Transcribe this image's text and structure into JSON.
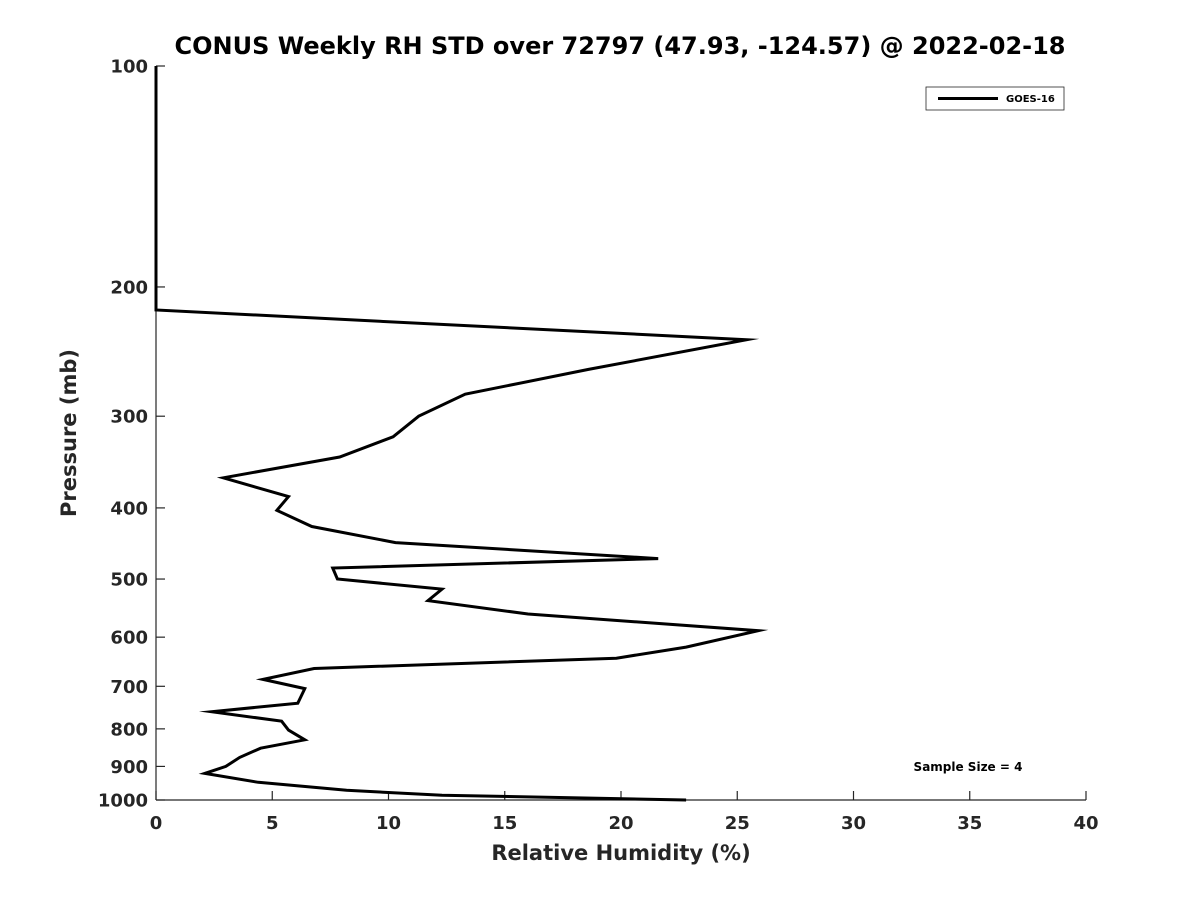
{
  "chart_data": {
    "type": "line",
    "title": "CONUS Weekly RH STD over 72797 (47.93, -124.57) @ 2022-02-18",
    "xlabel": "Relative Humidity (%)",
    "ylabel": "Pressure (mb)",
    "xlim": [
      0,
      40
    ],
    "ylim": [
      100,
      1000
    ],
    "y_scale": "log",
    "y_reversed": true,
    "grid": false,
    "legend_position": "top-right",
    "x_ticks": [
      "0",
      "5",
      "10",
      "15",
      "20",
      "25",
      "30",
      "35",
      "40"
    ],
    "y_ticks": [
      "100",
      "200",
      "300",
      "400",
      "500",
      "600",
      "700",
      "800",
      "900",
      "1000"
    ],
    "series": [
      {
        "name": "GOES-16",
        "color": "#000000",
        "points": [
          {
            "x": 0.0,
            "y": 100
          },
          {
            "x": 0.0,
            "y": 200
          },
          {
            "x": 0.0,
            "y": 215
          },
          {
            "x": 25.4,
            "y": 236
          },
          {
            "x": 18.6,
            "y": 259
          },
          {
            "x": 13.3,
            "y": 280
          },
          {
            "x": 11.3,
            "y": 300
          },
          {
            "x": 10.2,
            "y": 320
          },
          {
            "x": 7.9,
            "y": 341
          },
          {
            "x": 2.9,
            "y": 364
          },
          {
            "x": 5.7,
            "y": 386
          },
          {
            "x": 5.2,
            "y": 403
          },
          {
            "x": 6.7,
            "y": 424
          },
          {
            "x": 10.3,
            "y": 446
          },
          {
            "x": 21.6,
            "y": 469
          },
          {
            "x": 7.6,
            "y": 483
          },
          {
            "x": 7.8,
            "y": 500
          },
          {
            "x": 12.3,
            "y": 516
          },
          {
            "x": 11.7,
            "y": 535
          },
          {
            "x": 16.0,
            "y": 558
          },
          {
            "x": 25.9,
            "y": 588
          },
          {
            "x": 22.8,
            "y": 619
          },
          {
            "x": 19.8,
            "y": 641
          },
          {
            "x": 6.8,
            "y": 662
          },
          {
            "x": 4.6,
            "y": 685
          },
          {
            "x": 6.4,
            "y": 705
          },
          {
            "x": 6.1,
            "y": 738
          },
          {
            "x": 2.4,
            "y": 758
          },
          {
            "x": 5.4,
            "y": 781
          },
          {
            "x": 5.7,
            "y": 803
          },
          {
            "x": 6.4,
            "y": 828
          },
          {
            "x": 4.5,
            "y": 850
          },
          {
            "x": 3.6,
            "y": 875
          },
          {
            "x": 3.0,
            "y": 900
          },
          {
            "x": 2.1,
            "y": 920
          },
          {
            "x": 4.4,
            "y": 946
          },
          {
            "x": 8.2,
            "y": 970
          },
          {
            "x": 12.3,
            "y": 985
          },
          {
            "x": 22.8,
            "y": 1000
          }
        ]
      }
    ],
    "annotations": [
      "Sample Size = 4"
    ]
  }
}
